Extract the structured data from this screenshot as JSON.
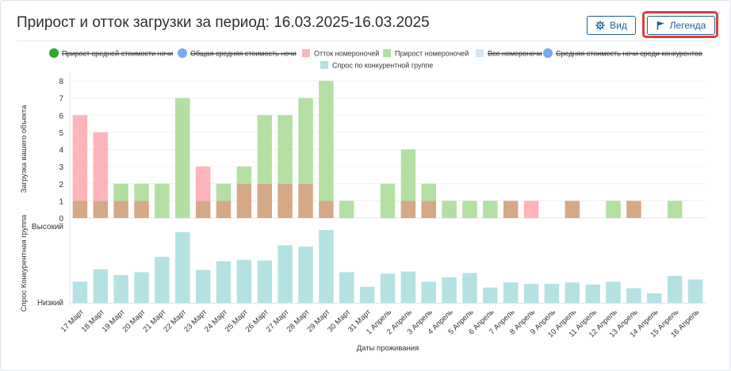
{
  "header": {
    "title": "Прирост и отток загрузки за период: 16.03.2025-16.03.2025",
    "view_label": "Вид",
    "legend_label": "Легенда",
    "view_icon": "gear-icon",
    "legend_icon": "flag-icon"
  },
  "colors": {
    "base": "#d5a886",
    "outflow": "#ffb3ba",
    "growth": "#b3e0a2",
    "demand": "#b4e2e2",
    "highlight": "#e23b3b",
    "accent": "#1f5f9a"
  },
  "legend": [
    {
      "label": "Прирост средней стоимости ночи",
      "marker": "circle",
      "color": "#2ea82e",
      "disabled": true
    },
    {
      "label": "Общая средняя стоимость ночи",
      "marker": "circle",
      "color": "#78a8f0",
      "disabled": true
    },
    {
      "label": "Отток номероночей",
      "marker": "square",
      "color": "#ffb3ba",
      "disabled": false
    },
    {
      "label": "Прирост номероночей",
      "marker": "square",
      "color": "#b3e0a2",
      "disabled": false
    },
    {
      "label": "Все номероночи",
      "marker": "square",
      "color": "#d6e4f7",
      "disabled": true
    },
    {
      "label": "Средняя стоимость ночи среди конкурентов",
      "marker": "circle",
      "color": "#78a8f0",
      "disabled": true
    },
    {
      "label": "Спрос по конкурентной группе",
      "marker": "square",
      "color": "#b4e2e2",
      "disabled": false
    }
  ],
  "chart_data": [
    {
      "type": "bar",
      "stacked": true,
      "ylabel": "Загрузка вашего объекта",
      "ylim": [
        0,
        8
      ],
      "yticks": [
        "0",
        "1",
        "2",
        "3",
        "4",
        "5",
        "6",
        "7",
        "8"
      ],
      "categories": [
        "17 Март",
        "18 Март",
        "19 Март",
        "20 Март",
        "21 Март",
        "22 Март",
        "23 Март",
        "24 Март",
        "25 Март",
        "26 Март",
        "27 Март",
        "28 Март",
        "29 Март",
        "30 Март",
        "31 Март",
        "1 Апрель",
        "2 Апрель",
        "3 Апрель",
        "4 Апрель",
        "5 Апрель",
        "6 Апрель",
        "7 Апрель",
        "8 Апрель",
        "9 Апрель",
        "10 Апрель",
        "11 Апрель",
        "12 Апрель",
        "13 Апрель",
        "14 Апрель",
        "15 Апрель",
        "16 Апрель"
      ],
      "series": [
        {
          "name": "Все номероночи",
          "values": [
            1,
            1,
            1,
            1,
            0,
            0,
            1,
            1,
            2,
            2,
            2,
            2,
            1,
            0,
            0,
            0,
            1,
            1,
            0,
            0,
            0,
            1,
            0,
            0,
            1,
            0,
            0,
            1,
            0,
            0,
            0
          ]
        },
        {
          "name": "Отток номероночей",
          "values": [
            5,
            4,
            0,
            0,
            0,
            0,
            2,
            0,
            0,
            0,
            0,
            0,
            0,
            0,
            0,
            0,
            0,
            0,
            0,
            0,
            0,
            0,
            1,
            0,
            0,
            0,
            0,
            0,
            0,
            0,
            0
          ]
        },
        {
          "name": "Прирост номероночей",
          "values": [
            0,
            0,
            1,
            1,
            2,
            7,
            0,
            1,
            1,
            4,
            4,
            5,
            7,
            1,
            0,
            2,
            3,
            1,
            1,
            1,
            1,
            0,
            0,
            0,
            0,
            0,
            1,
            0,
            0,
            1,
            0
          ]
        }
      ]
    },
    {
      "type": "bar",
      "ylabel": "Спрос Конкурентная группа",
      "yticks": [
        "Низкий",
        "Высокий"
      ],
      "ylim": [
        0,
        1
      ],
      "xlabel": "Даты проживания",
      "categories": [
        "17 Март",
        "18 Март",
        "19 Март",
        "20 Март",
        "21 Март",
        "22 Март",
        "23 Март",
        "24 Март",
        "25 Март",
        "26 Март",
        "27 Март",
        "28 Март",
        "29 Март",
        "30 Март",
        "31 Март",
        "1 Апрель",
        "2 Апрель",
        "3 Апрель",
        "4 Апрель",
        "5 Апрель",
        "6 Апрель",
        "7 Апрель",
        "8 Апрель",
        "9 Апрель",
        "10 Апрель",
        "11 Апрель",
        "12 Апрель",
        "13 Апрель",
        "14 Апрель",
        "15 Апрель",
        "16 Апрель"
      ],
      "series": [
        {
          "name": "Спрос по конкурентной группе",
          "values": [
            0.29,
            0.46,
            0.38,
            0.42,
            0.63,
            0.97,
            0.45,
            0.57,
            0.59,
            0.58,
            0.79,
            0.77,
            1.0,
            0.42,
            0.22,
            0.4,
            0.43,
            0.29,
            0.35,
            0.41,
            0.21,
            0.28,
            0.26,
            0.26,
            0.28,
            0.25,
            0.29,
            0.2,
            0.13,
            0.37,
            0.32
          ]
        }
      ]
    }
  ]
}
